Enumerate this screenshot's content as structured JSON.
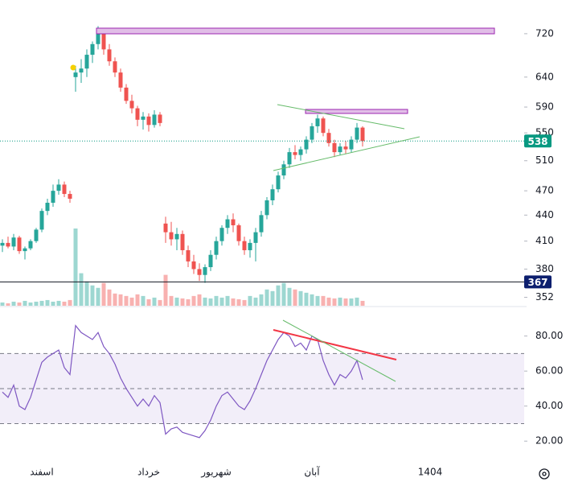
{
  "chart_data": [
    {
      "type": "candlestick",
      "log": true,
      "grid": false,
      "up_color": "#26a69a",
      "down_color": "#ef5350",
      "categories": [
        null,
        null,
        null,
        null,
        null,
        null,
        null,
        "اسفند",
        null,
        null,
        null,
        null,
        null,
        null,
        null,
        null,
        null,
        null,
        null,
        null,
        null,
        null,
        null,
        null,
        null,
        null,
        "خرداد",
        null,
        null,
        null,
        null,
        null,
        null,
        null,
        null,
        null,
        null,
        null,
        "شهریور",
        null,
        null,
        null,
        null,
        null,
        null,
        null,
        null,
        null,
        null,
        null,
        null,
        null,
        null,
        null,
        null,
        "آبان",
        null,
        null,
        null,
        null,
        null,
        null,
        null,
        null,
        null,
        null,
        null,
        null,
        null,
        null,
        null,
        null,
        null,
        null,
        null,
        null,
        "1404"
      ],
      "open": [
        405,
        408,
        404,
        414,
        399,
        402,
        410,
        423,
        445,
        455,
        470,
        478,
        466,
        640,
        648,
        655,
        680,
        700,
        725,
        690,
        668,
        648,
        622,
        600,
        588,
        570,
        575,
        562,
        578,
        430,
        420,
        412,
        418,
        400,
        388,
        380,
        374,
        382,
        395,
        410,
        425,
        435,
        428,
        410,
        400,
        408,
        420,
        440,
        458,
        472,
        490,
        505,
        522,
        518,
        526,
        540,
        560,
        572,
        550,
        535,
        522,
        530,
        526,
        540,
        558,
        null,
        null,
        null,
        null,
        null,
        null,
        null,
        null,
        null,
        null,
        null,
        null
      ],
      "high": [
        412,
        415,
        418,
        416,
        404,
        412,
        425,
        448,
        460,
        478,
        485,
        482,
        470,
        660,
        672,
        690,
        705,
        735,
        728,
        700,
        675,
        655,
        628,
        610,
        592,
        582,
        580,
        585,
        582,
        438,
        432,
        425,
        422,
        405,
        395,
        386,
        385,
        400,
        415,
        428,
        440,
        442,
        430,
        415,
        412,
        425,
        445,
        462,
        478,
        495,
        510,
        528,
        532,
        530,
        545,
        565,
        578,
        575,
        556,
        540,
        535,
        538,
        545,
        565,
        560,
        null,
        null,
        null,
        null,
        null,
        null,
        null,
        null,
        null,
        null,
        null,
        null
      ],
      "low": [
        398,
        402,
        400,
        396,
        390,
        400,
        408,
        420,
        440,
        450,
        465,
        462,
        455,
        615,
        630,
        640,
        665,
        690,
        680,
        660,
        640,
        615,
        595,
        580,
        560,
        555,
        552,
        558,
        560,
        408,
        405,
        400,
        395,
        382,
        375,
        368,
        366,
        378,
        390,
        405,
        418,
        420,
        405,
        395,
        392,
        388,
        415,
        435,
        452,
        468,
        485,
        500,
        512,
        510,
        520,
        535,
        550,
        545,
        530,
        515,
        518,
        520,
        522,
        535,
        530,
        null,
        null,
        null,
        null,
        null,
        null,
        null,
        null,
        null,
        null,
        null,
        null
      ],
      "close": [
        408,
        404,
        414,
        399,
        402,
        410,
        423,
        445,
        455,
        470,
        478,
        466,
        460,
        648,
        655,
        680,
        700,
        725,
        690,
        668,
        648,
        622,
        600,
        588,
        570,
        575,
        562,
        578,
        565,
        420,
        412,
        418,
        400,
        388,
        380,
        374,
        382,
        395,
        410,
        425,
        435,
        428,
        410,
        400,
        408,
        420,
        440,
        458,
        472,
        490,
        505,
        522,
        518,
        526,
        540,
        560,
        572,
        550,
        535,
        522,
        530,
        526,
        540,
        558,
        538,
        null,
        null,
        null,
        null,
        null,
        null,
        null,
        null,
        null,
        null,
        null,
        null
      ],
      "volume": [
        4,
        3,
        5,
        4,
        6,
        4,
        5,
        6,
        7,
        5,
        6,
        5,
        7,
        95,
        40,
        30,
        25,
        22,
        28,
        20,
        15,
        14,
        12,
        10,
        14,
        12,
        8,
        10,
        7,
        38,
        12,
        10,
        9,
        8,
        12,
        14,
        10,
        9,
        12,
        10,
        12,
        9,
        8,
        7,
        12,
        10,
        14,
        20,
        18,
        25,
        28,
        22,
        20,
        18,
        16,
        14,
        12,
        12,
        10,
        9,
        10,
        9,
        9,
        10,
        6,
        null,
        null,
        null,
        null,
        null,
        null,
        null,
        null,
        null,
        null,
        null,
        null
      ],
      "ylim": [
        344,
        789
      ],
      "yticks": [
        352,
        380,
        410,
        440,
        470,
        510,
        550,
        590,
        640,
        720
      ],
      "last_price": 538,
      "last_price_color": "#089981",
      "horizontal_line": 367,
      "horizontal_line_color": "#0d1f6e"
    },
    {
      "type": "line",
      "color": "#7e57c2",
      "values": [
        48,
        45,
        52,
        40,
        38,
        45,
        55,
        65,
        68,
        70,
        72,
        62,
        58,
        86,
        82,
        80,
        78,
        82,
        74,
        70,
        64,
        56,
        50,
        45,
        40,
        44,
        40,
        46,
        42,
        24,
        27,
        28,
        25,
        24,
        23,
        22,
        26,
        32,
        40,
        46,
        48,
        44,
        40,
        38,
        43,
        50,
        58,
        66,
        72,
        78,
        82,
        80,
        74,
        76,
        72,
        80,
        78,
        66,
        58,
        52,
        58,
        56,
        60,
        66,
        55,
        null,
        null,
        null,
        null,
        null,
        null,
        null,
        null,
        null,
        null,
        null,
        null
      ],
      "ylim": [
        10,
        95
      ],
      "yticks": [
        {
          "value": 20,
          "label": "20.00"
        },
        {
          "value": 40,
          "label": "40.00"
        },
        {
          "value": 60,
          "label": "60.00"
        },
        {
          "value": 80,
          "label": "80.00"
        }
      ],
      "band": [
        30,
        70
      ],
      "midline": 50
    }
  ]
}
